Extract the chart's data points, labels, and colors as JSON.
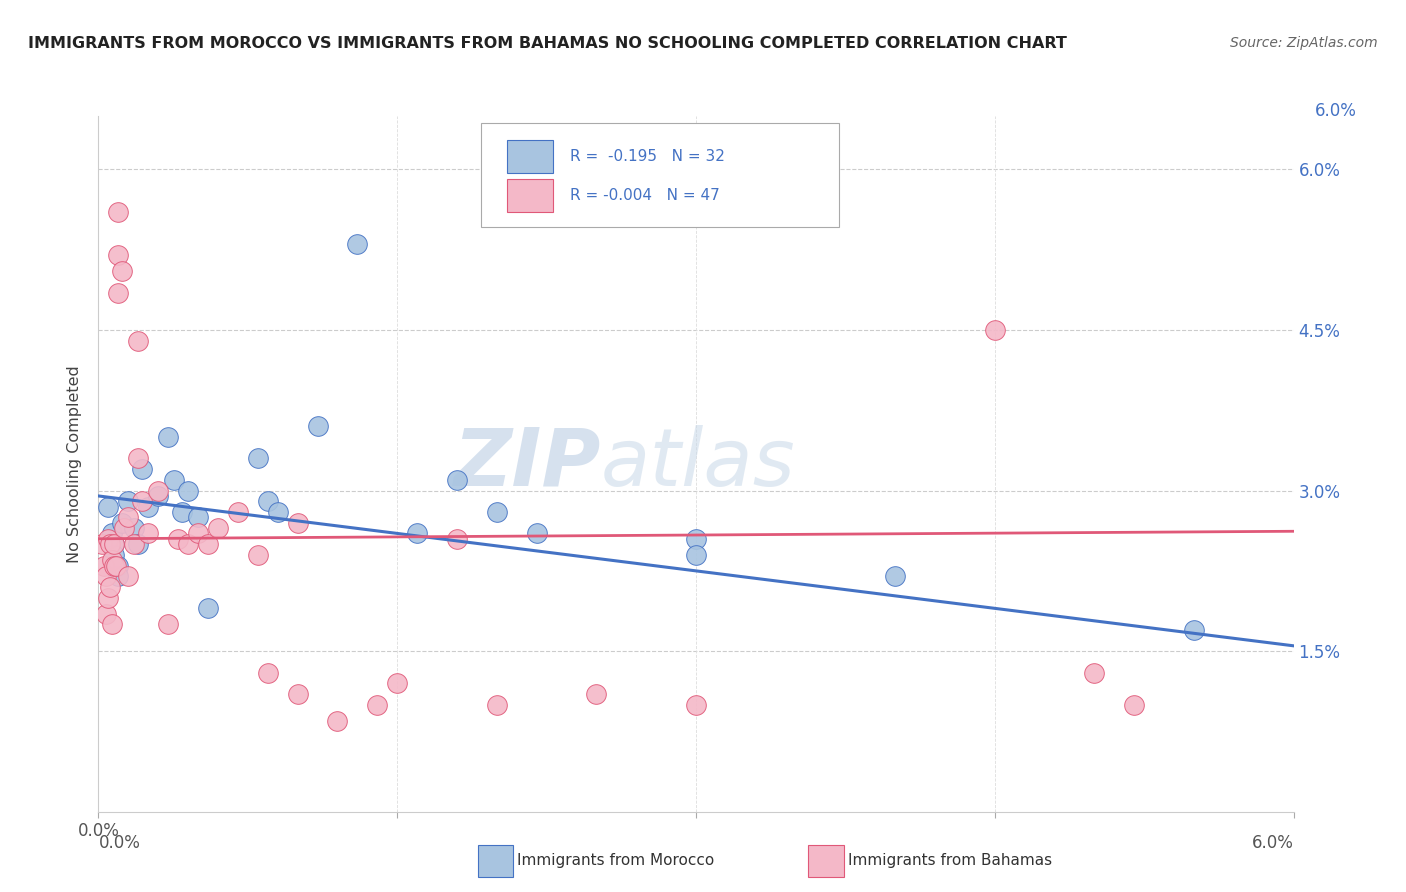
{
  "title": "IMMIGRANTS FROM MOROCCO VS IMMIGRANTS FROM BAHAMAS NO SCHOOLING COMPLETED CORRELATION CHART",
  "source": "Source: ZipAtlas.com",
  "ylabel": "No Schooling Completed",
  "xlim": [
    0.0,
    6.0
  ],
  "ylim": [
    0.0,
    6.5
  ],
  "ytick_values": [
    1.5,
    3.0,
    4.5,
    6.0
  ],
  "xtick_values": [
    0.0,
    1.5,
    3.0,
    4.5,
    6.0
  ],
  "color_morocco": "#a8c4e0",
  "color_bahamas": "#f4b8c8",
  "line_color_morocco": "#4472c4",
  "line_color_bahamas": "#e05878",
  "watermark_zip": "ZIP",
  "watermark_atlas": "atlas",
  "morocco_points": [
    [
      0.05,
      2.85
    ],
    [
      0.07,
      2.6
    ],
    [
      0.08,
      2.5
    ],
    [
      0.08,
      2.4
    ],
    [
      0.1,
      2.3
    ],
    [
      0.1,
      2.2
    ],
    [
      0.12,
      2.7
    ],
    [
      0.15,
      2.9
    ],
    [
      0.18,
      2.65
    ],
    [
      0.2,
      2.5
    ],
    [
      0.22,
      3.2
    ],
    [
      0.25,
      2.85
    ],
    [
      0.3,
      2.95
    ],
    [
      0.35,
      3.5
    ],
    [
      0.38,
      3.1
    ],
    [
      0.42,
      2.8
    ],
    [
      0.45,
      3.0
    ],
    [
      0.5,
      2.75
    ],
    [
      0.55,
      1.9
    ],
    [
      0.8,
      3.3
    ],
    [
      0.85,
      2.9
    ],
    [
      0.9,
      2.8
    ],
    [
      1.1,
      3.6
    ],
    [
      1.3,
      5.3
    ],
    [
      1.6,
      2.6
    ],
    [
      1.8,
      3.1
    ],
    [
      2.0,
      2.8
    ],
    [
      2.2,
      2.6
    ],
    [
      3.0,
      2.55
    ],
    [
      4.0,
      2.2
    ],
    [
      5.5,
      1.7
    ],
    [
      3.0,
      2.4
    ]
  ],
  "bahamas_points": [
    [
      0.02,
      2.5
    ],
    [
      0.03,
      2.3
    ],
    [
      0.04,
      2.2
    ],
    [
      0.04,
      1.85
    ],
    [
      0.05,
      2.55
    ],
    [
      0.05,
      2.0
    ],
    [
      0.06,
      2.5
    ],
    [
      0.06,
      2.1
    ],
    [
      0.07,
      2.35
    ],
    [
      0.07,
      1.75
    ],
    [
      0.08,
      2.3
    ],
    [
      0.08,
      2.5
    ],
    [
      0.09,
      2.3
    ],
    [
      0.1,
      5.6
    ],
    [
      0.1,
      5.2
    ],
    [
      0.1,
      4.85
    ],
    [
      0.12,
      5.05
    ],
    [
      0.13,
      2.65
    ],
    [
      0.15,
      2.75
    ],
    [
      0.15,
      2.2
    ],
    [
      0.18,
      2.5
    ],
    [
      0.2,
      3.3
    ],
    [
      0.2,
      4.4
    ],
    [
      0.22,
      2.9
    ],
    [
      0.25,
      2.6
    ],
    [
      0.3,
      3.0
    ],
    [
      0.35,
      1.75
    ],
    [
      0.4,
      2.55
    ],
    [
      0.45,
      2.5
    ],
    [
      0.5,
      2.6
    ],
    [
      0.55,
      2.5
    ],
    [
      0.6,
      2.65
    ],
    [
      0.7,
      2.8
    ],
    [
      0.8,
      2.4
    ],
    [
      0.85,
      1.3
    ],
    [
      1.0,
      2.7
    ],
    [
      1.0,
      1.1
    ],
    [
      1.2,
      0.85
    ],
    [
      1.4,
      1.0
    ],
    [
      1.5,
      1.2
    ],
    [
      1.8,
      2.55
    ],
    [
      2.0,
      1.0
    ],
    [
      2.5,
      1.1
    ],
    [
      3.0,
      1.0
    ],
    [
      4.5,
      4.5
    ],
    [
      5.0,
      1.3
    ],
    [
      5.2,
      1.0
    ]
  ],
  "morocco_line_x": [
    0.0,
    6.0
  ],
  "morocco_line_y": [
    2.95,
    1.55
  ],
  "bahamas_line_x": [
    0.0,
    6.0
  ],
  "bahamas_line_y": [
    2.55,
    2.62
  ]
}
